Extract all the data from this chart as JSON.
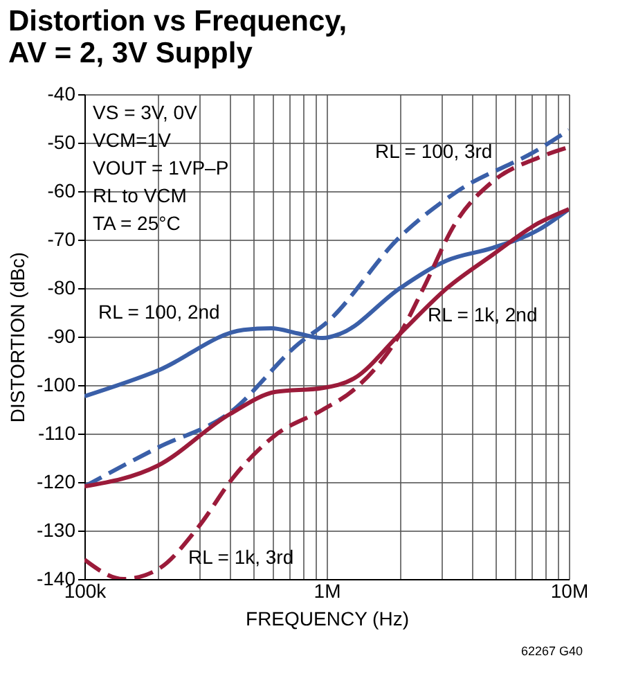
{
  "chart_data": {
    "type": "line",
    "title": "Distortion vs Frequency, AV = 2, 3V Supply",
    "xlabel": "FREQUENCY (Hz)",
    "ylabel": "DISTORTION (dBc)",
    "log": "x",
    "grid": true,
    "legend": false,
    "xlim": [
      100000,
      10000000
    ],
    "ylim": [
      -140,
      -40
    ],
    "xticks": [
      {
        "value": 100000,
        "label": "100k"
      },
      {
        "value": 200000,
        "label": null
      },
      {
        "value": 300000,
        "label": null
      },
      {
        "value": 400000,
        "label": null
      },
      {
        "value": 500000,
        "label": null
      },
      {
        "value": 600000,
        "label": null
      },
      {
        "value": 700000,
        "label": null
      },
      {
        "value": 800000,
        "label": null
      },
      {
        "value": 900000,
        "label": null
      },
      {
        "value": 1000000,
        "label": "1M"
      },
      {
        "value": 2000000,
        "label": null
      },
      {
        "value": 3000000,
        "label": null
      },
      {
        "value": 4000000,
        "label": null
      },
      {
        "value": 5000000,
        "label": null
      },
      {
        "value": 6000000,
        "label": null
      },
      {
        "value": 7000000,
        "label": null
      },
      {
        "value": 8000000,
        "label": null
      },
      {
        "value": 9000000,
        "label": null
      },
      {
        "value": 10000000,
        "label": "10M"
      }
    ],
    "yticks": [
      -140,
      -130,
      -120,
      -110,
      -100,
      -90,
      -80,
      -70,
      -60,
      -50,
      -40
    ],
    "series": [
      {
        "name": "RL = 100, 2nd",
        "color": "#3a5fa8",
        "line_style": "solid",
        "x": [
          100000,
          201000,
          454000,
          590000,
          769000,
          961000,
          1140000,
          2010000,
          3140000,
          4850000,
          7480000,
          10000000
        ],
        "values": [
          -102.3,
          -97,
          -88.6,
          -88.3,
          -89.4,
          -90.3,
          -89.4,
          -80,
          -74.3,
          -71.7,
          -68,
          -63.7
        ]
      },
      {
        "name": "RL = 100, 3rd",
        "color": "#3a5fa8",
        "line_style": "dashed",
        "x": [
          100000,
          201000,
          398000,
          769000,
          1000000,
          2010000,
          3400000,
          7480000,
          10000000
        ],
        "values": [
          -120.9,
          -112.9,
          -105.7,
          -91.4,
          -87.1,
          -69.4,
          -60.3,
          -51.4,
          -47.4
        ]
      },
      {
        "name": "RL = 1k, 2nd",
        "color": "#9b1b3a",
        "line_style": "solid",
        "x": [
          100000,
          201000,
          398000,
          615000,
          961000,
          1300000,
          2010000,
          3140000,
          4850000,
          7480000,
          10000000
        ],
        "values": [
          -120.9,
          -116.6,
          -106,
          -101.4,
          -100.6,
          -98.6,
          -89.4,
          -80,
          -73.1,
          -66.6,
          -63.7
        ]
      },
      {
        "name": "RL = 1k, 3rd",
        "color": "#9b1b3a",
        "line_style": "dashed",
        "x": [
          100000,
          145000,
          201000,
          294000,
          414000,
          615000,
          961000,
          1300000,
          2010000,
          2510000,
          3400000,
          4850000,
          7480000,
          10000000
        ],
        "values": [
          -136,
          -140,
          -138,
          -129.4,
          -118.9,
          -110.3,
          -105.1,
          -100.9,
          -89.4,
          -80,
          -66.6,
          -58,
          -53.1,
          -50.9
        ]
      }
    ],
    "annotations": [
      "VS = 3V, 0V",
      "VCM=1V",
      "VOUT = 1VP–P",
      "RL to VCM",
      "TA = 25°C",
      "62267 G40"
    ]
  }
}
